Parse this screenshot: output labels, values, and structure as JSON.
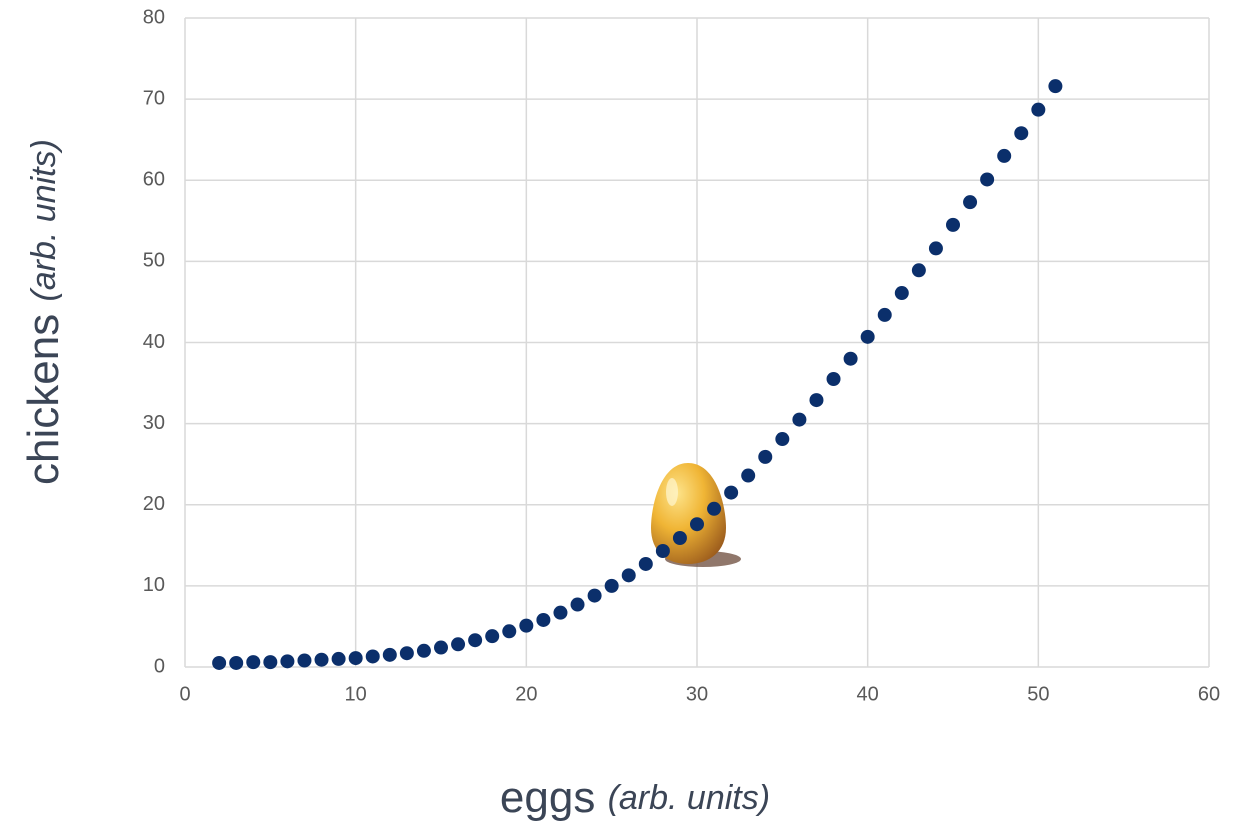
{
  "chart_data": {
    "type": "scatter",
    "xlabel": "eggs",
    "xlabel_note": "(arb. units)",
    "ylabel": "chickens",
    "ylabel_note": "(arb. units)",
    "x": [
      2,
      3,
      4,
      5,
      6,
      7,
      8,
      9,
      10,
      11,
      12,
      13,
      14,
      15,
      16,
      17,
      18,
      19,
      20,
      21,
      22,
      23,
      24,
      25,
      26,
      27,
      28,
      29,
      30,
      31,
      32,
      33,
      34,
      35,
      36,
      37,
      38,
      39,
      40,
      41,
      42,
      43,
      44,
      45,
      46,
      47,
      48,
      49,
      50,
      51
    ],
    "values": [
      0.5,
      0.5,
      0.6,
      0.6,
      0.7,
      0.8,
      0.9,
      1.0,
      1.1,
      1.3,
      1.5,
      1.7,
      2.0,
      2.4,
      2.8,
      3.3,
      3.8,
      4.4,
      5.1,
      5.8,
      6.7,
      7.7,
      8.8,
      10.0,
      11.3,
      12.7,
      14.3,
      15.9,
      17.6,
      19.5,
      21.5,
      23.6,
      25.9,
      28.1,
      30.5,
      32.9,
      35.5,
      38.0,
      40.7,
      43.4,
      46.1,
      48.9,
      51.6,
      54.5,
      57.3,
      60.1,
      63.0,
      65.8,
      68.7,
      71.6
    ],
    "color": "#0b2f6b",
    "xlim": [
      0,
      60
    ],
    "xticks": [
      0,
      10,
      20,
      30,
      40,
      50,
      60
    ],
    "ylim": [
      0,
      80
    ],
    "yticks": [
      0,
      10,
      20,
      30,
      40,
      50,
      60,
      70,
      80
    ],
    "grid": true
  }
}
